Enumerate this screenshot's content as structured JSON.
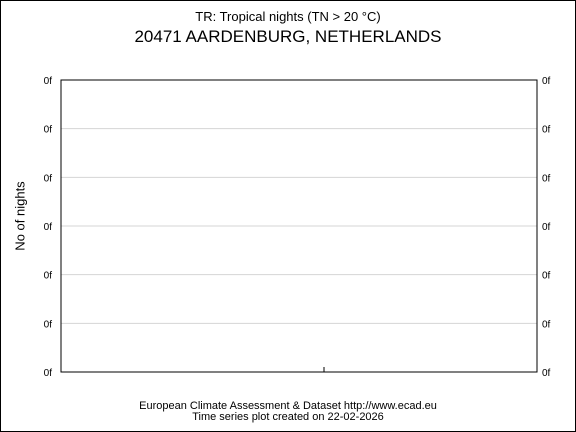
{
  "chart_data": {
    "type": "bar",
    "title": "TR: Tropical nights (TN > 20 °C)",
    "subtitle": "20471 AARDENBURG, NETHERLANDS",
    "ylabel": "No of nights",
    "xlabel": "",
    "y_tick_labels": [
      "0f",
      "0f",
      "0f",
      "0f",
      "0f",
      "0f",
      "0f"
    ],
    "categories": [],
    "values": [],
    "grid": true
  },
  "footer": {
    "line1": "European Climate Assessment & Dataset  http://www.ecad.eu",
    "line2": "Time series plot created on 22-02-2026"
  }
}
